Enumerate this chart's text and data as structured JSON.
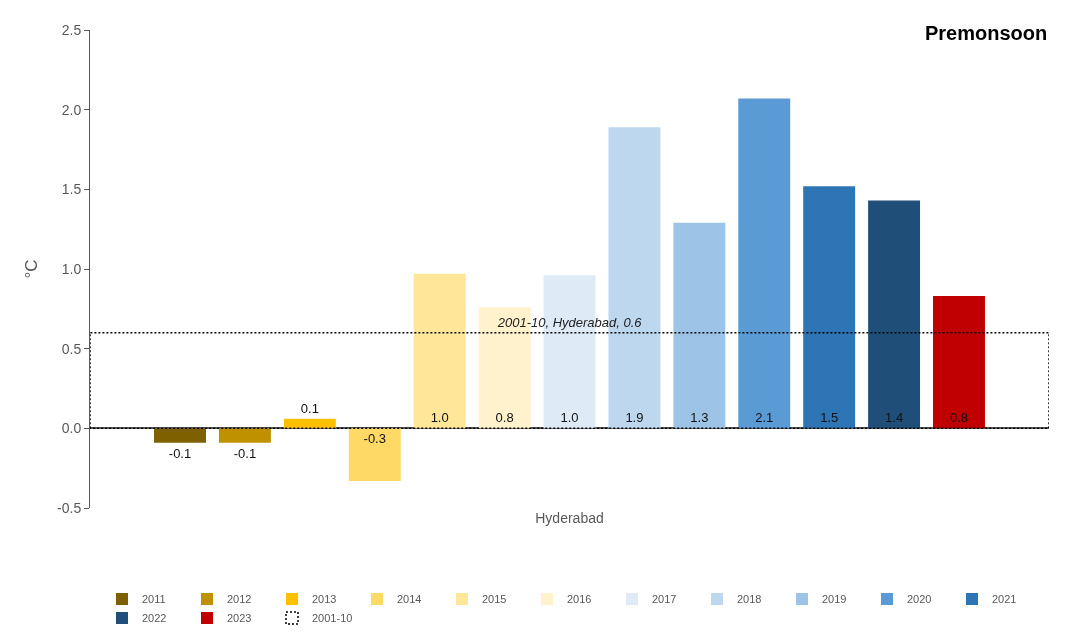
{
  "chart_data": {
    "type": "bar",
    "title": "Premonsoon",
    "ylabel": "°C",
    "categories": [
      "Hyderabad"
    ],
    "ylim": [
      -0.5,
      2.5
    ],
    "yticks": [
      {
        "value": -0.5,
        "label": "-0.5"
      },
      {
        "value": 0,
        "label": "0.0"
      },
      {
        "value": 0.5,
        "label": "0.5"
      },
      {
        "value": 1,
        "label": "1.0"
      },
      {
        "value": 1.5,
        "label": "1.5"
      },
      {
        "value": 2,
        "label": "2.0"
      },
      {
        "value": 2.5,
        "label": "2.5"
      }
    ],
    "legend": "bottom",
    "series": [
      {
        "name": "2011",
        "color": "#7f6000",
        "values": [
          -0.09
        ],
        "value_labels": [
          "-0.1"
        ]
      },
      {
        "name": "2012",
        "color": "#bf9000",
        "values": [
          -0.09
        ],
        "value_labels": [
          "-0.1"
        ]
      },
      {
        "name": "2013",
        "color": "#ffc000",
        "values": [
          0.06
        ],
        "value_labels": [
          "0.1"
        ]
      },
      {
        "name": "2014",
        "color": "#ffd966",
        "values": [
          -0.33
        ],
        "value_labels": [
          "-0.3"
        ]
      },
      {
        "name": "2015",
        "color": "#ffe699",
        "values": [
          0.97
        ],
        "value_labels": [
          "1.0"
        ]
      },
      {
        "name": "2016",
        "color": "#fff2cc",
        "values": [
          0.76
        ],
        "value_labels": [
          "0.8"
        ]
      },
      {
        "name": "2017",
        "color": "#deebf7",
        "values": [
          0.96
        ],
        "value_labels": [
          "1.0"
        ]
      },
      {
        "name": "2018",
        "color": "#bdd7ee",
        "values": [
          1.89
        ],
        "value_labels": [
          "1.9"
        ]
      },
      {
        "name": "2019",
        "color": "#9dc3e6",
        "values": [
          1.29
        ],
        "value_labels": [
          "1.3"
        ]
      },
      {
        "name": "2020",
        "color": "#5b9bd5",
        "values": [
          2.07
        ],
        "value_labels": [
          "2.1"
        ]
      },
      {
        "name": "2021",
        "color": "#2e75b6",
        "values": [
          1.52
        ],
        "value_labels": [
          "1.5"
        ]
      },
      {
        "name": "2022",
        "color": "#1f4e79",
        "values": [
          1.43
        ],
        "value_labels": [
          "1.4"
        ]
      },
      {
        "name": "2023",
        "color": "#c00000",
        "values": [
          0.83
        ],
        "value_labels": [
          "0.8"
        ]
      },
      {
        "name": "2001-10",
        "color": "#000000",
        "values": [
          0.6
        ],
        "value_labels": [
          "2001-10, Hyderabad, 0.6"
        ],
        "line_style": "dotted"
      }
    ]
  }
}
